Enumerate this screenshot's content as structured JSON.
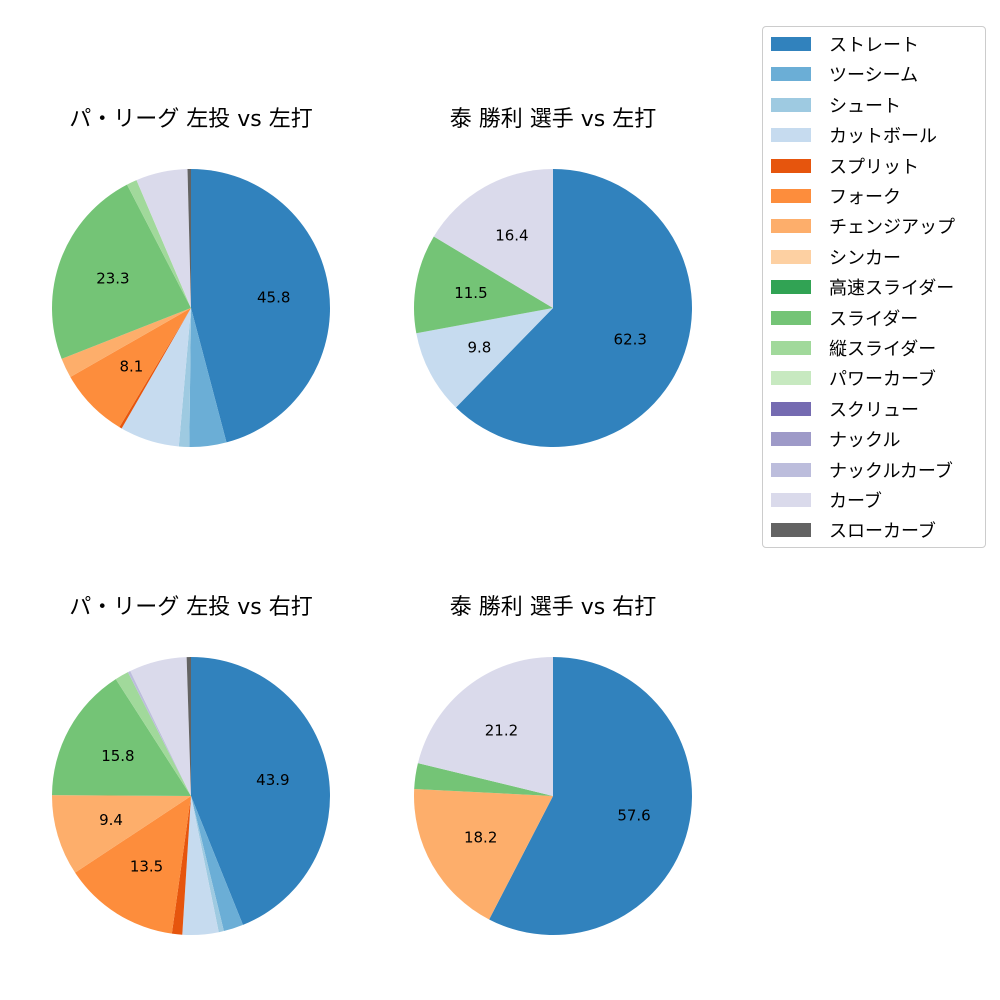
{
  "chart_data": [
    {
      "type": "pie",
      "title": "パ・リーグ 左投 vs 左打",
      "slices": [
        {
          "category": "ストレート",
          "value": 45.8,
          "label": "45.8"
        },
        {
          "category": "ツーシーム",
          "value": 4.3,
          "label": ""
        },
        {
          "category": "シュート",
          "value": 1.2,
          "label": ""
        },
        {
          "category": "カットボール",
          "value": 6.9,
          "label": ""
        },
        {
          "category": "スプリット",
          "value": 0.3,
          "label": ""
        },
        {
          "category": "フォーク",
          "value": 8.1,
          "label": "8.1"
        },
        {
          "category": "チェンジアップ",
          "value": 2.3,
          "label": ""
        },
        {
          "category": "スライダー",
          "value": 23.3,
          "label": "23.3"
        },
        {
          "category": "縦スライダー",
          "value": 1.2,
          "label": ""
        },
        {
          "category": "カーブ",
          "value": 6.0,
          "label": ""
        },
        {
          "category": "スローカーブ",
          "value": 0.4,
          "label": ""
        }
      ]
    },
    {
      "type": "pie",
      "title": "泰 勝利 選手 vs 左打",
      "slices": [
        {
          "category": "ストレート",
          "value": 62.3,
          "label": "62.3"
        },
        {
          "category": "カットボール",
          "value": 9.8,
          "label": "9.8"
        },
        {
          "category": "スライダー",
          "value": 11.5,
          "label": "11.5"
        },
        {
          "category": "カーブ",
          "value": 16.4,
          "label": "16.4"
        }
      ]
    },
    {
      "type": "pie",
      "title": "パ・リーグ 左投 vs 右打",
      "slices": [
        {
          "category": "ストレート",
          "value": 43.9,
          "label": "43.9"
        },
        {
          "category": "ツーシーム",
          "value": 2.3,
          "label": ""
        },
        {
          "category": "シュート",
          "value": 0.6,
          "label": ""
        },
        {
          "category": "カットボール",
          "value": 4.2,
          "label": ""
        },
        {
          "category": "スプリット",
          "value": 1.2,
          "label": ""
        },
        {
          "category": "フォーク",
          "value": 13.5,
          "label": "13.5"
        },
        {
          "category": "チェンジアップ",
          "value": 9.4,
          "label": "9.4"
        },
        {
          "category": "スライダー",
          "value": 15.8,
          "label": "15.8"
        },
        {
          "category": "縦スライダー",
          "value": 1.6,
          "label": ""
        },
        {
          "category": "ナックルカーブ",
          "value": 0.3,
          "label": ""
        },
        {
          "category": "カーブ",
          "value": 6.7,
          "label": ""
        },
        {
          "category": "スローカーブ",
          "value": 0.5,
          "label": ""
        }
      ]
    },
    {
      "type": "pie",
      "title": "泰 勝利 選手 vs 右打",
      "slices": [
        {
          "category": "ストレート",
          "value": 57.6,
          "label": "57.6"
        },
        {
          "category": "チェンジアップ",
          "value": 18.2,
          "label": "18.2"
        },
        {
          "category": "スライダー",
          "value": 3.0,
          "label": ""
        },
        {
          "category": "カーブ",
          "value": 21.2,
          "label": "21.2"
        }
      ]
    }
  ],
  "legend": {
    "placement": "right",
    "items": [
      {
        "label": "ストレート",
        "color": "#3182bd"
      },
      {
        "label": "ツーシーム",
        "color": "#6baed6"
      },
      {
        "label": "シュート",
        "color": "#9ecae1"
      },
      {
        "label": "カットボール",
        "color": "#c6dbef"
      },
      {
        "label": "スプリット",
        "color": "#e6550d"
      },
      {
        "label": "フォーク",
        "color": "#fd8d3c"
      },
      {
        "label": "チェンジアップ",
        "color": "#fdae6b"
      },
      {
        "label": "シンカー",
        "color": "#fdd0a2"
      },
      {
        "label": "高速スライダー",
        "color": "#31a354"
      },
      {
        "label": "スライダー",
        "color": "#74c476"
      },
      {
        "label": "縦スライダー",
        "color": "#a1d99b"
      },
      {
        "label": "パワーカーブ",
        "color": "#c7e9c0"
      },
      {
        "label": "スクリュー",
        "color": "#756bb1"
      },
      {
        "label": "ナックル",
        "color": "#9e9ac8"
      },
      {
        "label": "ナックルカーブ",
        "color": "#bcbddc"
      },
      {
        "label": "カーブ",
        "color": "#dadaeb"
      },
      {
        "label": "スローカーブ",
        "color": "#636363"
      }
    ]
  }
}
